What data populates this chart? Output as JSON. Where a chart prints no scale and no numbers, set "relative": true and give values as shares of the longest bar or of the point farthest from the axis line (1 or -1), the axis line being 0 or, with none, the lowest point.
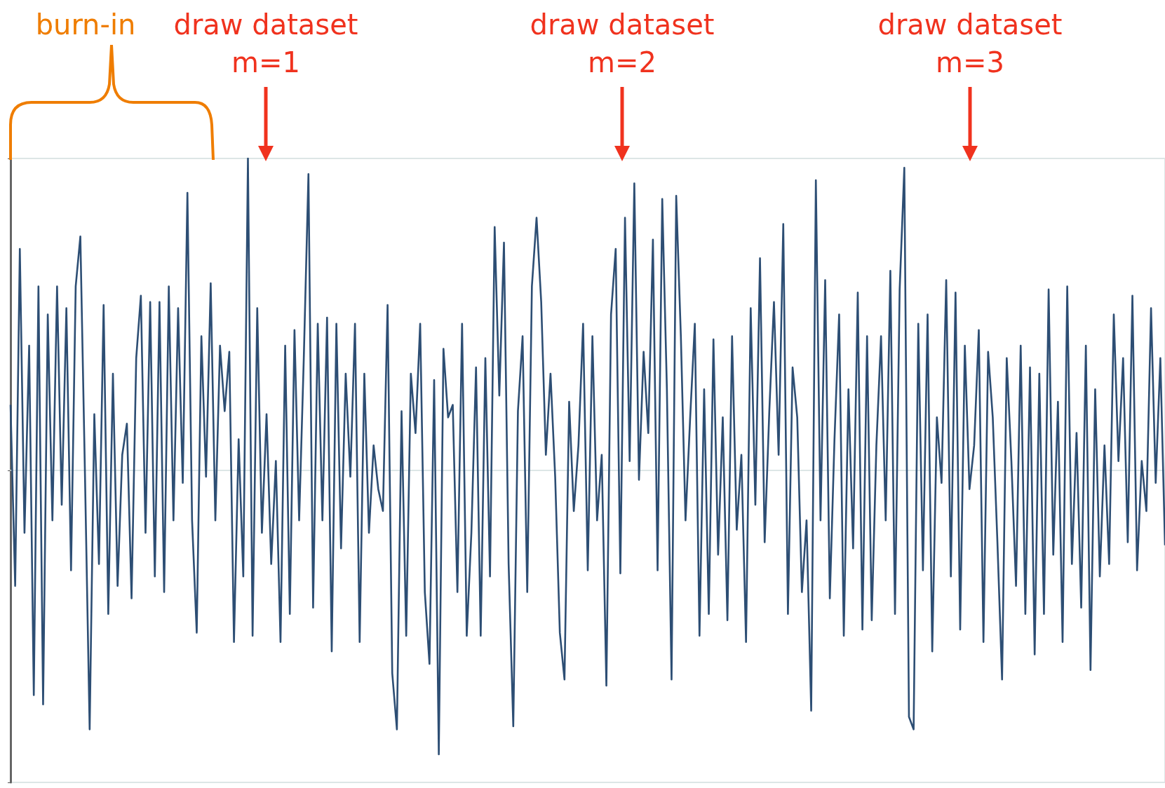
{
  "chart_data": {
    "type": "line",
    "relative": true,
    "line_style": "solid",
    "annotations": [
      "burn-in",
      "draw dataset\nm=1",
      "draw dataset\nm=2",
      "draw dataset\nm=3"
    ],
    "categories": [
      null,
      null,
      null,
      null,
      null,
      null,
      null,
      null,
      null,
      null,
      null,
      null,
      null,
      null,
      null,
      null,
      null,
      null,
      null,
      null,
      null,
      null,
      null,
      null,
      null,
      null,
      null,
      null,
      null,
      null,
      null,
      null,
      null,
      null,
      null,
      null,
      null,
      null,
      null,
      null,
      null,
      null,
      null,
      null,
      null,
      null,
      null,
      null,
      null,
      null,
      null,
      null,
      null,
      null,
      null,
      null,
      null,
      null,
      null,
      null,
      null,
      null,
      null,
      null,
      null,
      null,
      null,
      null,
      null,
      null,
      null,
      null,
      null,
      null,
      null,
      null,
      null,
      null,
      null,
      null,
      null,
      null,
      null,
      null,
      null,
      null,
      null,
      null,
      null,
      null,
      null,
      null,
      null,
      null,
      null,
      null,
      null,
      null,
      null,
      null,
      null,
      null,
      null,
      null,
      null,
      null,
      null,
      null,
      null,
      null,
      null,
      null,
      null,
      null,
      null,
      null,
      null,
      null,
      null,
      null,
      null,
      null,
      null,
      null,
      null,
      null,
      null,
      null,
      null,
      null,
      null,
      null,
      null,
      null,
      null,
      null,
      null,
      null,
      null,
      null,
      null,
      null,
      null,
      null,
      null,
      null,
      null,
      null,
      null,
      null,
      null,
      null,
      null,
      null,
      null,
      null,
      null,
      null,
      null,
      null,
      null,
      null,
      null,
      null,
      null,
      null,
      null,
      null,
      null,
      null,
      null,
      null,
      null,
      null,
      null,
      null,
      null,
      null,
      null,
      null,
      null,
      null,
      null,
      null,
      null,
      null,
      null,
      null,
      null,
      null,
      null,
      null,
      null,
      null,
      null,
      null,
      null,
      null,
      null,
      null,
      null,
      null,
      null,
      null,
      null,
      null,
      null,
      null,
      null,
      null,
      null,
      null,
      null,
      null,
      null,
      null,
      null,
      null,
      null,
      null,
      null,
      null,
      null,
      null,
      null,
      null,
      null,
      null,
      null,
      null,
      null,
      null,
      null,
      null,
      null,
      null,
      null,
      null,
      null,
      null,
      null,
      null,
      null,
      null,
      null,
      null,
      null,
      null,
      null
    ],
    "series": [
      {
        "color": "#2d4e74",
        "values": [
          0.21,
          -0.37,
          0.71,
          -0.2,
          0.4,
          -0.72,
          0.59,
          -0.75,
          0.5,
          -0.16,
          0.59,
          -0.11,
          0.52,
          -0.32,
          0.59,
          0.75,
          -0.02,
          -0.83,
          0.18,
          -0.3,
          0.53,
          -0.46,
          0.31,
          -0.37,
          0.05,
          0.15,
          -0.41,
          0.36,
          0.56,
          -0.2,
          0.54,
          -0.34,
          0.54,
          -0.39,
          0.59,
          -0.16,
          0.52,
          -0.04,
          0.89,
          -0.16,
          -0.52,
          0.43,
          -0.02,
          0.6,
          -0.16,
          0.4,
          0.19,
          0.38,
          -0.55,
          0.1,
          -0.34,
          1,
          -0.53,
          0.52,
          -0.2,
          0.18,
          -0.3,
          0.03,
          -0.55,
          0.4,
          -0.46,
          0.45,
          -0.16,
          0.36,
          0.95,
          -0.44,
          0.47,
          -0.16,
          0.49,
          -0.58,
          0.47,
          -0.25,
          0.31,
          -0.02,
          0.47,
          -0.55,
          0.31,
          -0.2,
          0.08,
          -0.06,
          -0.13,
          0.53,
          -0.65,
          -0.83,
          0.19,
          -0.53,
          0.31,
          0.12,
          0.47,
          -0.39,
          -0.62,
          0.29,
          -0.91,
          0.39,
          0.17,
          0.21,
          -0.39,
          0.47,
          -0.53,
          -0.2,
          0.33,
          -0.53,
          0.36,
          -0.34,
          0.78,
          0.24,
          0.73,
          -0.3,
          -0.82,
          0.19,
          0.43,
          -0.39,
          0.59,
          0.81,
          0.54,
          0.05,
          0.31,
          -0.02,
          -0.52,
          -0.67,
          0.22,
          -0.13,
          0.08,
          0.47,
          -0.32,
          0.43,
          -0.16,
          0.05,
          -0.69,
          0.5,
          0.71,
          -0.33,
          0.81,
          0.03,
          0.92,
          -0.03,
          0.38,
          0.12,
          0.74,
          -0.32,
          0.87,
          0.26,
          -0.67,
          0.88,
          0.43,
          -0.16,
          0.17,
          0.47,
          -0.53,
          0.26,
          -0.46,
          0.42,
          -0.27,
          0.17,
          -0.48,
          0.43,
          -0.19,
          0.05,
          -0.55,
          0.52,
          -0.11,
          0.68,
          -0.23,
          0.19,
          0.54,
          0.05,
          0.79,
          -0.46,
          0.33,
          0.17,
          -0.39,
          -0.16,
          -0.77,
          0.93,
          -0.16,
          0.61,
          -0.41,
          0.1,
          0.5,
          -0.53,
          0.26,
          -0.25,
          0.57,
          -0.51,
          0.43,
          -0.48,
          0.08,
          0.43,
          -0.16,
          0.64,
          -0.46,
          0.58,
          0.97,
          -0.79,
          -0.83,
          0.47,
          -0.32,
          0.5,
          -0.58,
          0.17,
          -0.04,
          0.61,
          -0.34,
          0.57,
          -0.51,
          0.4,
          -0.06,
          0.08,
          0.45,
          -0.55,
          0.38,
          0.17,
          -0.23,
          -0.67,
          0.36,
          0.03,
          -0.37,
          0.4,
          -0.46,
          0.33,
          -0.59,
          0.31,
          -0.46,
          0.58,
          -0.27,
          0.22,
          -0.55,
          0.59,
          -0.3,
          0.12,
          -0.44,
          0.4,
          -0.64,
          0.26,
          -0.34,
          0.08,
          -0.3,
          0.5,
          0.03,
          0.36,
          -0.23,
          0.56,
          -0.32,
          0.03,
          -0.13,
          0.52,
          -0.04,
          0.36,
          -0.24
        ]
      }
    ]
  }
}
